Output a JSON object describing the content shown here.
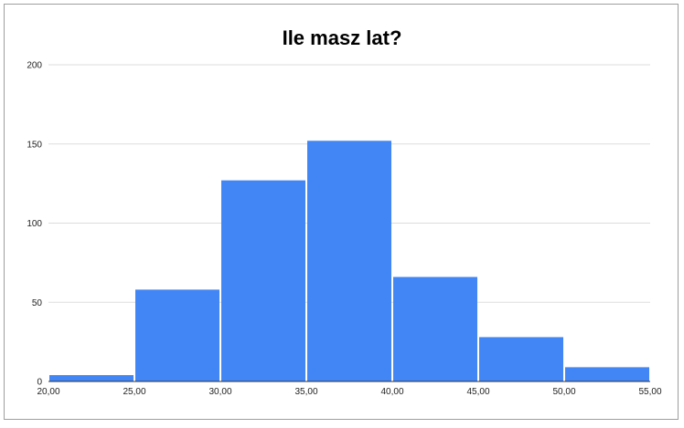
{
  "chart_data": {
    "type": "bar",
    "title": "Ile masz lat?",
    "xlabel": "",
    "ylabel": "",
    "bins": [
      {
        "from": 20,
        "to": 25,
        "value": 4
      },
      {
        "from": 25,
        "to": 30,
        "value": 58
      },
      {
        "from": 30,
        "to": 35,
        "value": 127
      },
      {
        "from": 35,
        "to": 40,
        "value": 152
      },
      {
        "from": 40,
        "to": 45,
        "value": 66
      },
      {
        "from": 45,
        "to": 50,
        "value": 28
      },
      {
        "from": 50,
        "to": 55,
        "value": 9
      }
    ],
    "x_ticks": [
      "20,00",
      "25,00",
      "30,00",
      "35,00",
      "40,00",
      "45,00",
      "50,00",
      "55,00"
    ],
    "y_ticks": [
      "0",
      "50",
      "100",
      "150",
      "200"
    ],
    "xlim": [
      20,
      55
    ],
    "ylim": [
      0,
      200
    ],
    "grid": true,
    "legend": "none",
    "bar_color": "#4285f4"
  }
}
